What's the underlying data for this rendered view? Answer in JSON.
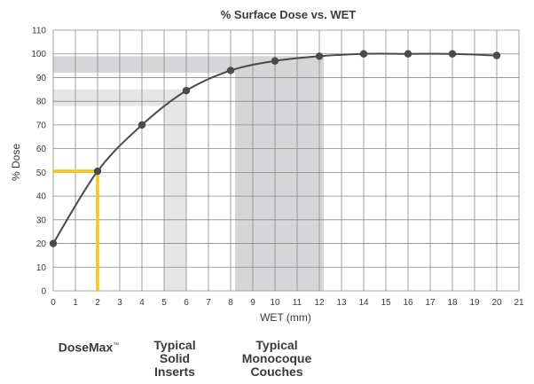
{
  "chart_data": {
    "type": "line",
    "title": "% Surface Dose vs. WET",
    "xlabel": "WET (mm)",
    "ylabel": "% Dose",
    "xlim": [
      0,
      21
    ],
    "ylim": [
      0,
      110
    ],
    "x_ticks": [
      0,
      1,
      2,
      3,
      4,
      5,
      6,
      7,
      8,
      9,
      10,
      11,
      12,
      13,
      14,
      15,
      16,
      17,
      18,
      19,
      20,
      21
    ],
    "y_ticks": [
      0,
      10,
      20,
      30,
      40,
      50,
      60,
      70,
      80,
      90,
      100,
      110
    ],
    "grid": true,
    "series": [
      {
        "color": "#4a4a4a",
        "points": [
          [
            0,
            20
          ],
          [
            2,
            50.5
          ],
          [
            4,
            70
          ],
          [
            6,
            84.5
          ],
          [
            8,
            93
          ],
          [
            10,
            97
          ],
          [
            12,
            99
          ],
          [
            14,
            100
          ],
          [
            16,
            100
          ],
          [
            18,
            100
          ],
          [
            20,
            99.3
          ]
        ]
      }
    ],
    "highlight_bands": [
      {
        "x": [
          5,
          6
        ],
        "y": [
          0,
          85
        ],
        "color": "#e6e6e6"
      },
      {
        "x": [
          8.2,
          12.2
        ],
        "y": [
          0,
          99
        ],
        "color": "#d6d6d9"
      },
      {
        "x": [
          0,
          6
        ],
        "y": [
          78,
          85
        ],
        "color": "#e6e6e6"
      },
      {
        "x": [
          0,
          12.2
        ],
        "y": [
          92,
          99
        ],
        "color": "#d6d6d9"
      }
    ],
    "marker_lines": {
      "x": 2,
      "y": 50.5,
      "color": "#f5c518"
    },
    "region_labels": [
      {
        "text": "DoseMax",
        "superscript": "™"
      },
      {
        "text": "Typical Solid Inserts"
      },
      {
        "text": "Typical Monocoque Couches"
      }
    ]
  }
}
